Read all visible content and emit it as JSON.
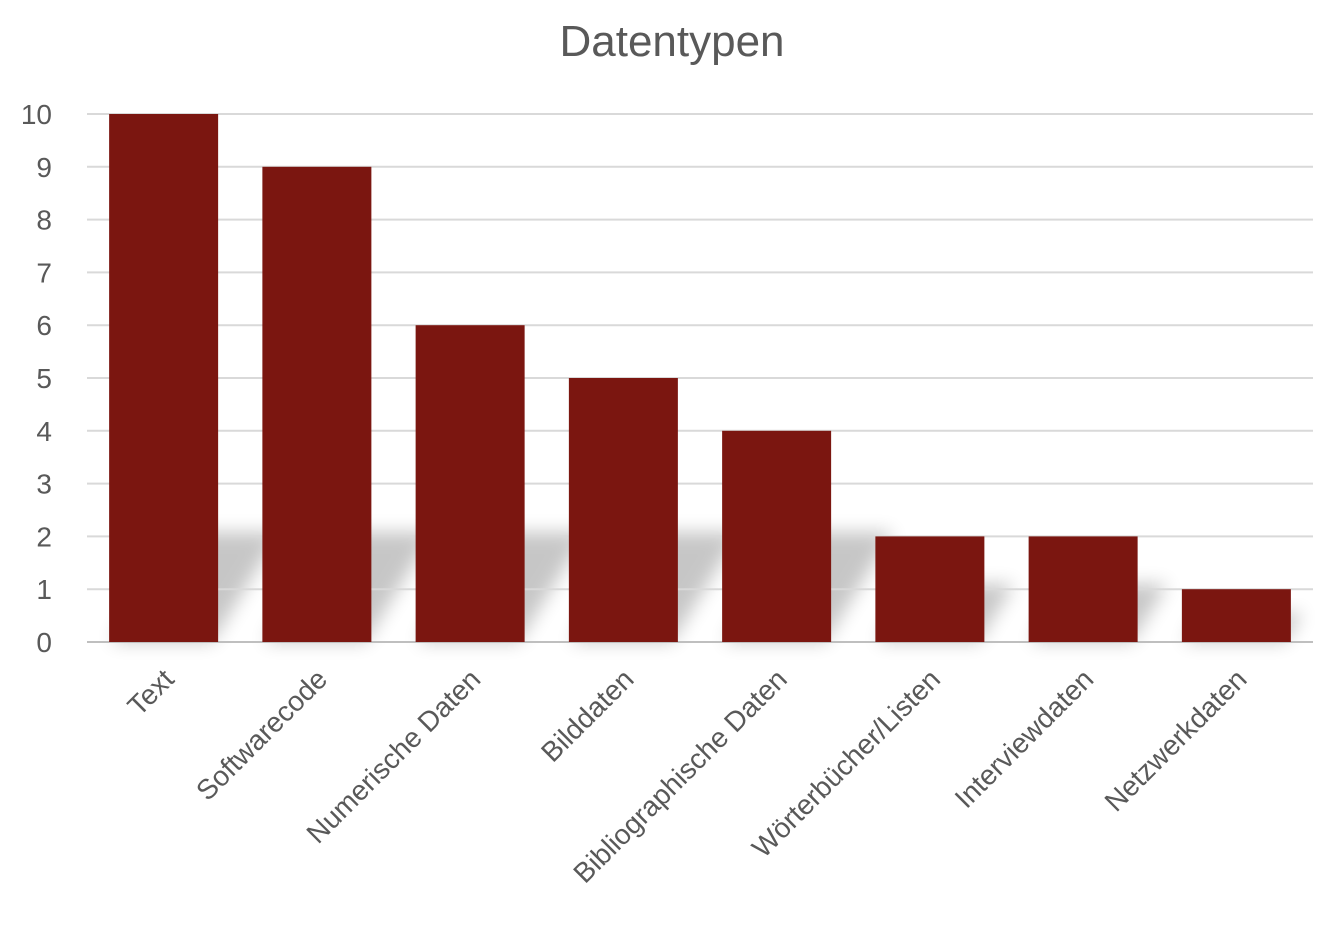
{
  "chart_data": {
    "type": "bar",
    "title": "Datentypen",
    "categories": [
      "Text",
      "Softwarecode",
      "Numerische Daten",
      "Bilddaten",
      "Bibliographische Daten",
      "Wörterbücher/Listen",
      "Interviewdaten",
      "Netzwerkdaten"
    ],
    "values": [
      10,
      9,
      6,
      5,
      4,
      2,
      2,
      1
    ],
    "yticks": [
      "0",
      "1",
      "2",
      "3",
      "4",
      "5",
      "6",
      "7",
      "8",
      "9",
      "10"
    ],
    "ylim": [
      0,
      10
    ],
    "xlabel": "",
    "ylabel": "",
    "grid": true,
    "legend": "none",
    "bar_color": "#7B1610",
    "grid_color": "#d9d9d9",
    "text_color": "#595959"
  }
}
